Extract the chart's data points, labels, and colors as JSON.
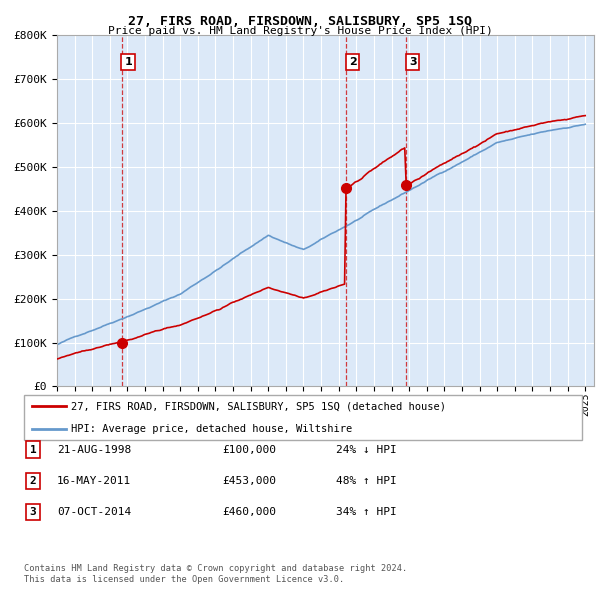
{
  "title": "27, FIRS ROAD, FIRSDOWN, SALISBURY, SP5 1SQ",
  "subtitle": "Price paid vs. HM Land Registry's House Price Index (HPI)",
  "legend_label_red": "27, FIRS ROAD, FIRSDOWN, SALISBURY, SP5 1SQ (detached house)",
  "legend_label_blue": "HPI: Average price, detached house, Wiltshire",
  "sale1_date": "21-AUG-1998",
  "sale1_price": 100000,
  "sale1_pct": "24% ↓ HPI",
  "sale2_date": "16-MAY-2011",
  "sale2_price": 453000,
  "sale2_pct": "48% ↑ HPI",
  "sale3_date": "07-OCT-2014",
  "sale3_price": 460000,
  "sale3_pct": "34% ↑ HPI",
  "footer1": "Contains HM Land Registry data © Crown copyright and database right 2024.",
  "footer2": "This data is licensed under the Open Government Licence v3.0.",
  "background_color": "#dce9f8",
  "red_color": "#cc0000",
  "blue_color": "#6699cc",
  "ylim": [
    0,
    800000
  ],
  "start_year": 1995,
  "end_year": 2025
}
